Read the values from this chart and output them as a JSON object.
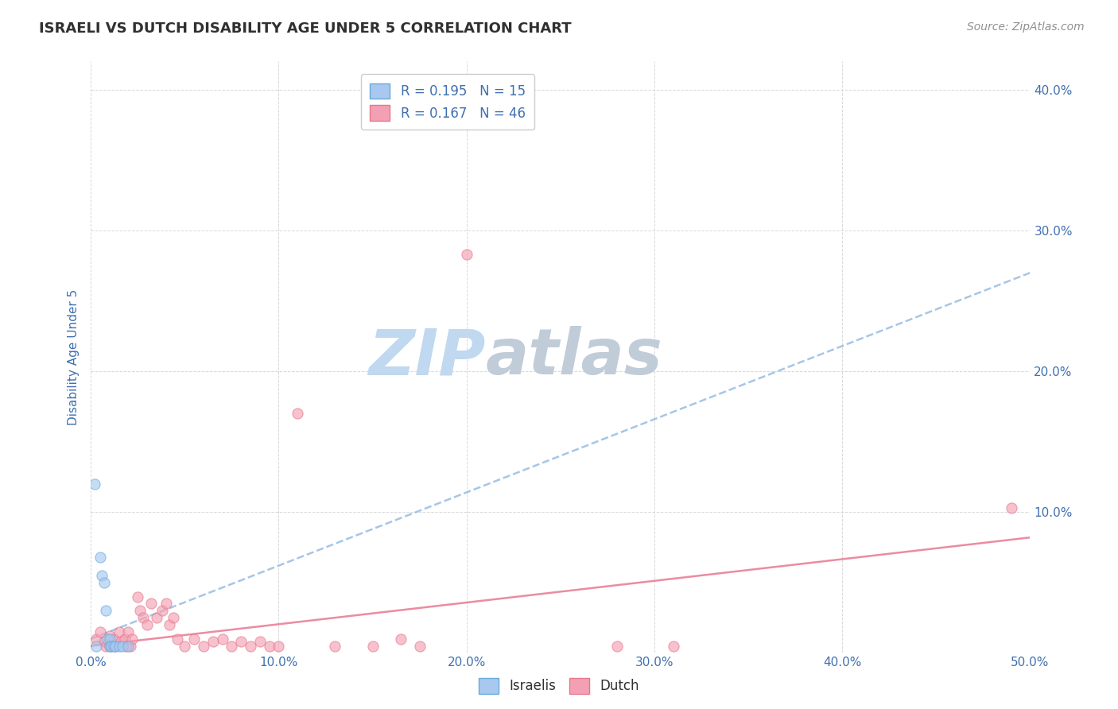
{
  "title": "ISRAELI VS DUTCH DISABILITY AGE UNDER 5 CORRELATION CHART",
  "source": "Source: ZipAtlas.com",
  "xlabel": "",
  "ylabel": "Disability Age Under 5",
  "xlim": [
    0.0,
    0.5
  ],
  "ylim": [
    0.0,
    0.42
  ],
  "xticks": [
    0.0,
    0.1,
    0.2,
    0.3,
    0.4,
    0.5
  ],
  "yticks": [
    0.0,
    0.1,
    0.2,
    0.3,
    0.4
  ],
  "xticklabels": [
    "0.0%",
    "10.0%",
    "20.0%",
    "30.0%",
    "40.0%",
    "50.0%"
  ],
  "yticklabels": [
    "",
    "10.0%",
    "20.0%",
    "30.0%",
    "40.0%"
  ],
  "israeli_color": "#a8c8f0",
  "dutch_color": "#f4a0b4",
  "israeli_edge_color": "#6aaad8",
  "dutch_edge_color": "#e8788a",
  "israeli_trend_color": "#90b8e0",
  "dutch_trend_color": "#e87890",
  "watermark_zip_color": "#cce0f5",
  "watermark_atlas_color": "#c8d8e8",
  "background_color": "#ffffff",
  "grid_color": "#d8d8d8",
  "title_color": "#303030",
  "axis_label_color": "#4070b0",
  "tick_color": "#4070b0",
  "israeli_x": [
    0.002,
    0.005,
    0.006,
    0.007,
    0.008,
    0.009,
    0.01,
    0.01,
    0.011,
    0.012,
    0.013,
    0.015,
    0.017,
    0.02,
    0.003
  ],
  "israeli_y": [
    0.12,
    0.068,
    0.055,
    0.05,
    0.03,
    0.01,
    0.01,
    0.005,
    0.005,
    0.005,
    0.005,
    0.005,
    0.005,
    0.005,
    0.005
  ],
  "dutch_x": [
    0.003,
    0.005,
    0.007,
    0.008,
    0.01,
    0.01,
    0.012,
    0.013,
    0.015,
    0.016,
    0.018,
    0.019,
    0.02,
    0.021,
    0.022,
    0.025,
    0.026,
    0.028,
    0.03,
    0.032,
    0.035,
    0.038,
    0.04,
    0.042,
    0.044,
    0.046,
    0.05,
    0.055,
    0.06,
    0.065,
    0.07,
    0.075,
    0.08,
    0.085,
    0.09,
    0.095,
    0.1,
    0.11,
    0.13,
    0.15,
    0.165,
    0.175,
    0.2,
    0.28,
    0.31,
    0.49
  ],
  "dutch_y": [
    0.01,
    0.015,
    0.008,
    0.005,
    0.012,
    0.005,
    0.01,
    0.005,
    0.015,
    0.008,
    0.01,
    0.005,
    0.015,
    0.005,
    0.01,
    0.04,
    0.03,
    0.025,
    0.02,
    0.035,
    0.025,
    0.03,
    0.035,
    0.02,
    0.025,
    0.01,
    0.005,
    0.01,
    0.005,
    0.008,
    0.01,
    0.005,
    0.008,
    0.005,
    0.008,
    0.005,
    0.005,
    0.17,
    0.005,
    0.005,
    0.01,
    0.005,
    0.283,
    0.005,
    0.005,
    0.103
  ],
  "marker_size": 90,
  "marker_alpha": 0.65,
  "trend_lw": 1.8,
  "trend_linestyle_israeli": "--",
  "trend_linestyle_dutch": "-"
}
